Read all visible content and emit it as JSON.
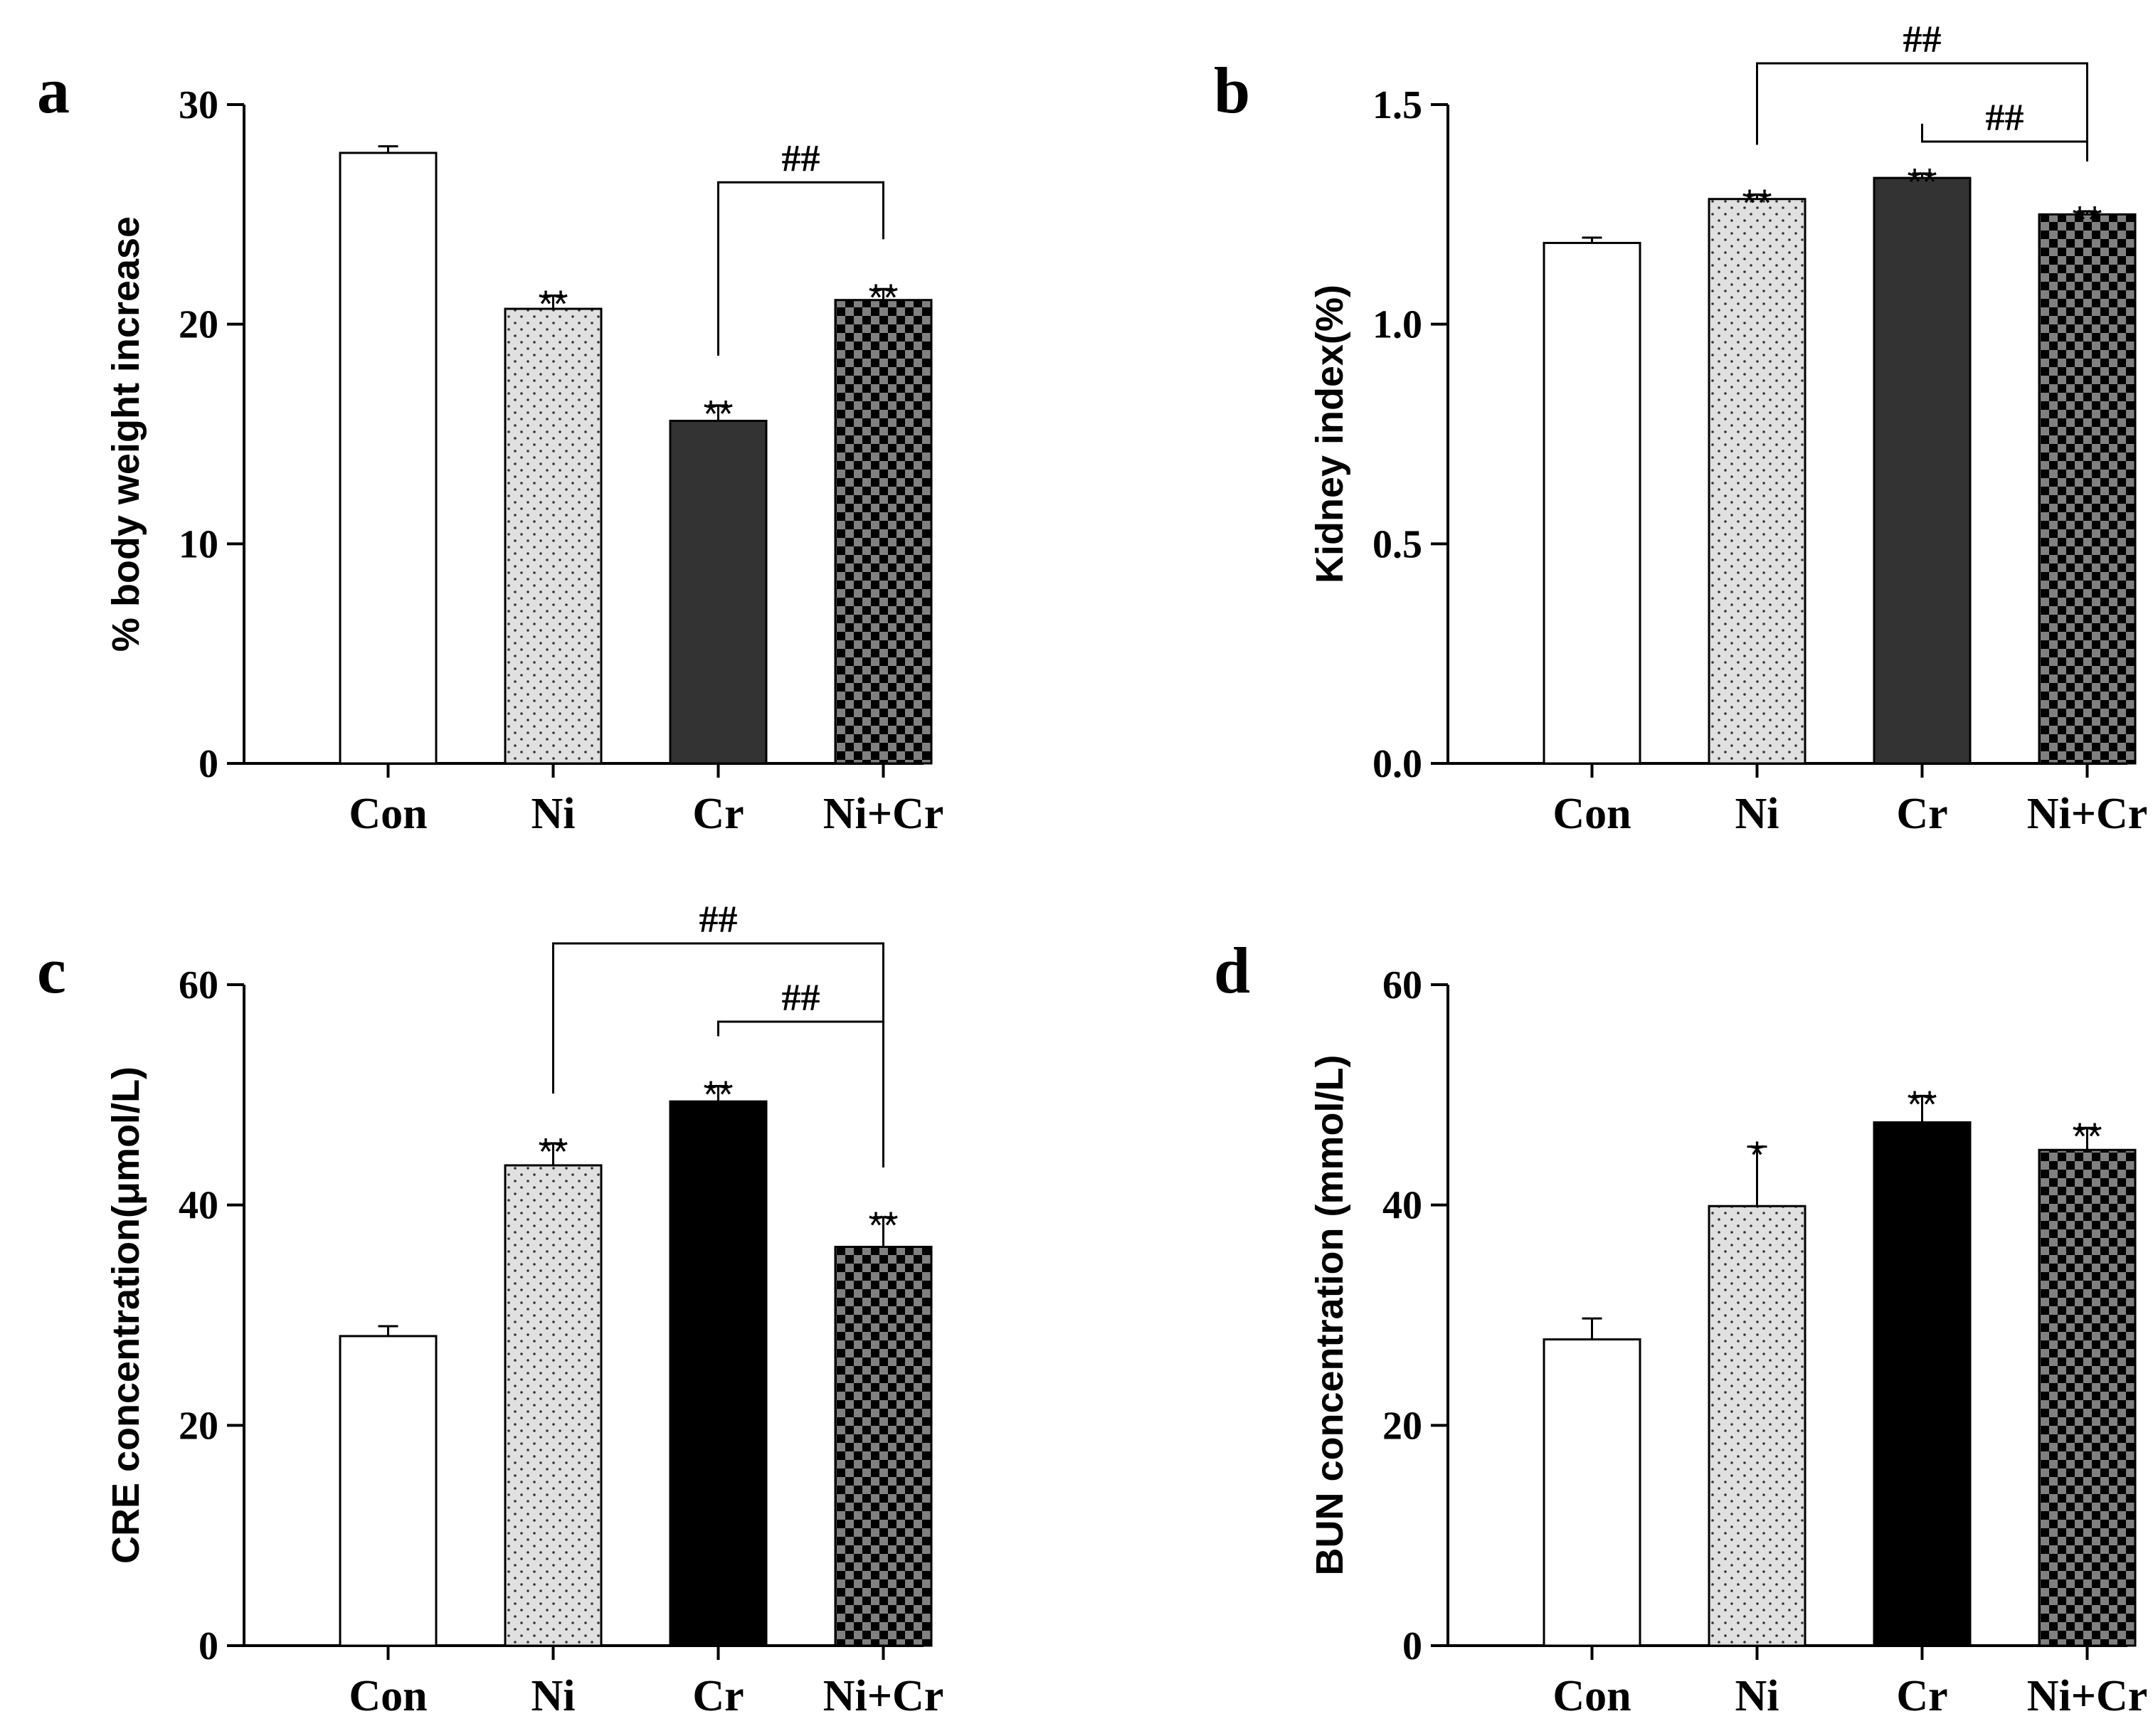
{
  "chart_data": [
    {
      "type": "bar",
      "panel": "a",
      "categories": [
        "Con",
        "Ni",
        "Cr",
        "Ni+Cr"
      ],
      "values": [
        27.8,
        20.7,
        15.6,
        21.1
      ],
      "errors": [
        0.3,
        0.6,
        0.7,
        0.5
      ],
      "significance": [
        "",
        "**",
        "**",
        "**"
      ],
      "ylabel": "% body weight increase",
      "ylim": [
        0,
        30
      ],
      "yticks": [
        0,
        10,
        20,
        30
      ],
      "ytick_labels": [
        "0",
        "10",
        "20",
        "30"
      ],
      "brackets": [
        {
          "from": 2,
          "to": 3,
          "label": "##"
        }
      ]
    },
    {
      "type": "bar",
      "panel": "b",
      "categories": [
        "Con",
        "Ni",
        "Cr",
        "Ni+Cr"
      ],
      "values": [
        1.185,
        1.285,
        1.333,
        1.25
      ],
      "errors": [
        0.012,
        0.01,
        0.01,
        0.007
      ],
      "significance": [
        "",
        "**",
        "**",
        "**"
      ],
      "ylabel": "Kidney index(%)",
      "ylim": [
        0,
        1.5
      ],
      "yticks": [
        0,
        0.5,
        1.0,
        1.5
      ],
      "ytick_labels": [
        "0.0",
        "0.5",
        "1.0",
        "1.5"
      ],
      "brackets": [
        {
          "from": 1,
          "to": 3,
          "label": "##"
        },
        {
          "from": 2,
          "to": 3,
          "label": "##"
        }
      ]
    },
    {
      "type": "bar",
      "panel": "c",
      "categories": [
        "Con",
        "Ni",
        "Cr",
        "Ni+Cr"
      ],
      "values": [
        28.1,
        43.6,
        49.4,
        36.2
      ],
      "errors": [
        0.9,
        2.0,
        1.4,
        2.7
      ],
      "significance": [
        "",
        "**",
        "**",
        "**"
      ],
      "ylabel": "CRE concentration(μmol/L)",
      "ylim": [
        0,
        60
      ],
      "yticks": [
        0,
        20,
        40,
        60
      ],
      "ytick_labels": [
        "0",
        "20",
        "40",
        "60"
      ],
      "brackets": [
        {
          "from": 1,
          "to": 3,
          "label": "##"
        },
        {
          "from": 2,
          "to": 3,
          "label": "##"
        }
      ]
    },
    {
      "type": "bar",
      "panel": "d",
      "categories": [
        "Con",
        "Ni",
        "Cr",
        "Ni+Cr"
      ],
      "values": [
        27.8,
        39.9,
        47.5,
        45.0
      ],
      "errors": [
        1.9,
        5.4,
        2.4,
        2.0
      ],
      "significance": [
        "",
        "*",
        "**",
        "**"
      ],
      "ylabel": "BUN concentration (mmol/L)",
      "ylim": [
        0,
        60
      ],
      "yticks": [
        0,
        20,
        40,
        60
      ],
      "ytick_labels": [
        "0",
        "20",
        "40",
        "60"
      ],
      "brackets": []
    }
  ],
  "bar_styles": [
    {
      "pattern": "none",
      "fill": "#ffffff"
    },
    {
      "pattern": "dots",
      "fill": "#e0e0e0"
    },
    {
      "pattern": "solid",
      "fill": "#333333"
    },
    {
      "pattern": "checker",
      "fill": "#777777"
    }
  ],
  "colors": {
    "cr_bar_top_row": "#333333",
    "cr_bar_bottom_row": "#000000",
    "checker_dark": "#000000",
    "checker_light": "#808080"
  }
}
